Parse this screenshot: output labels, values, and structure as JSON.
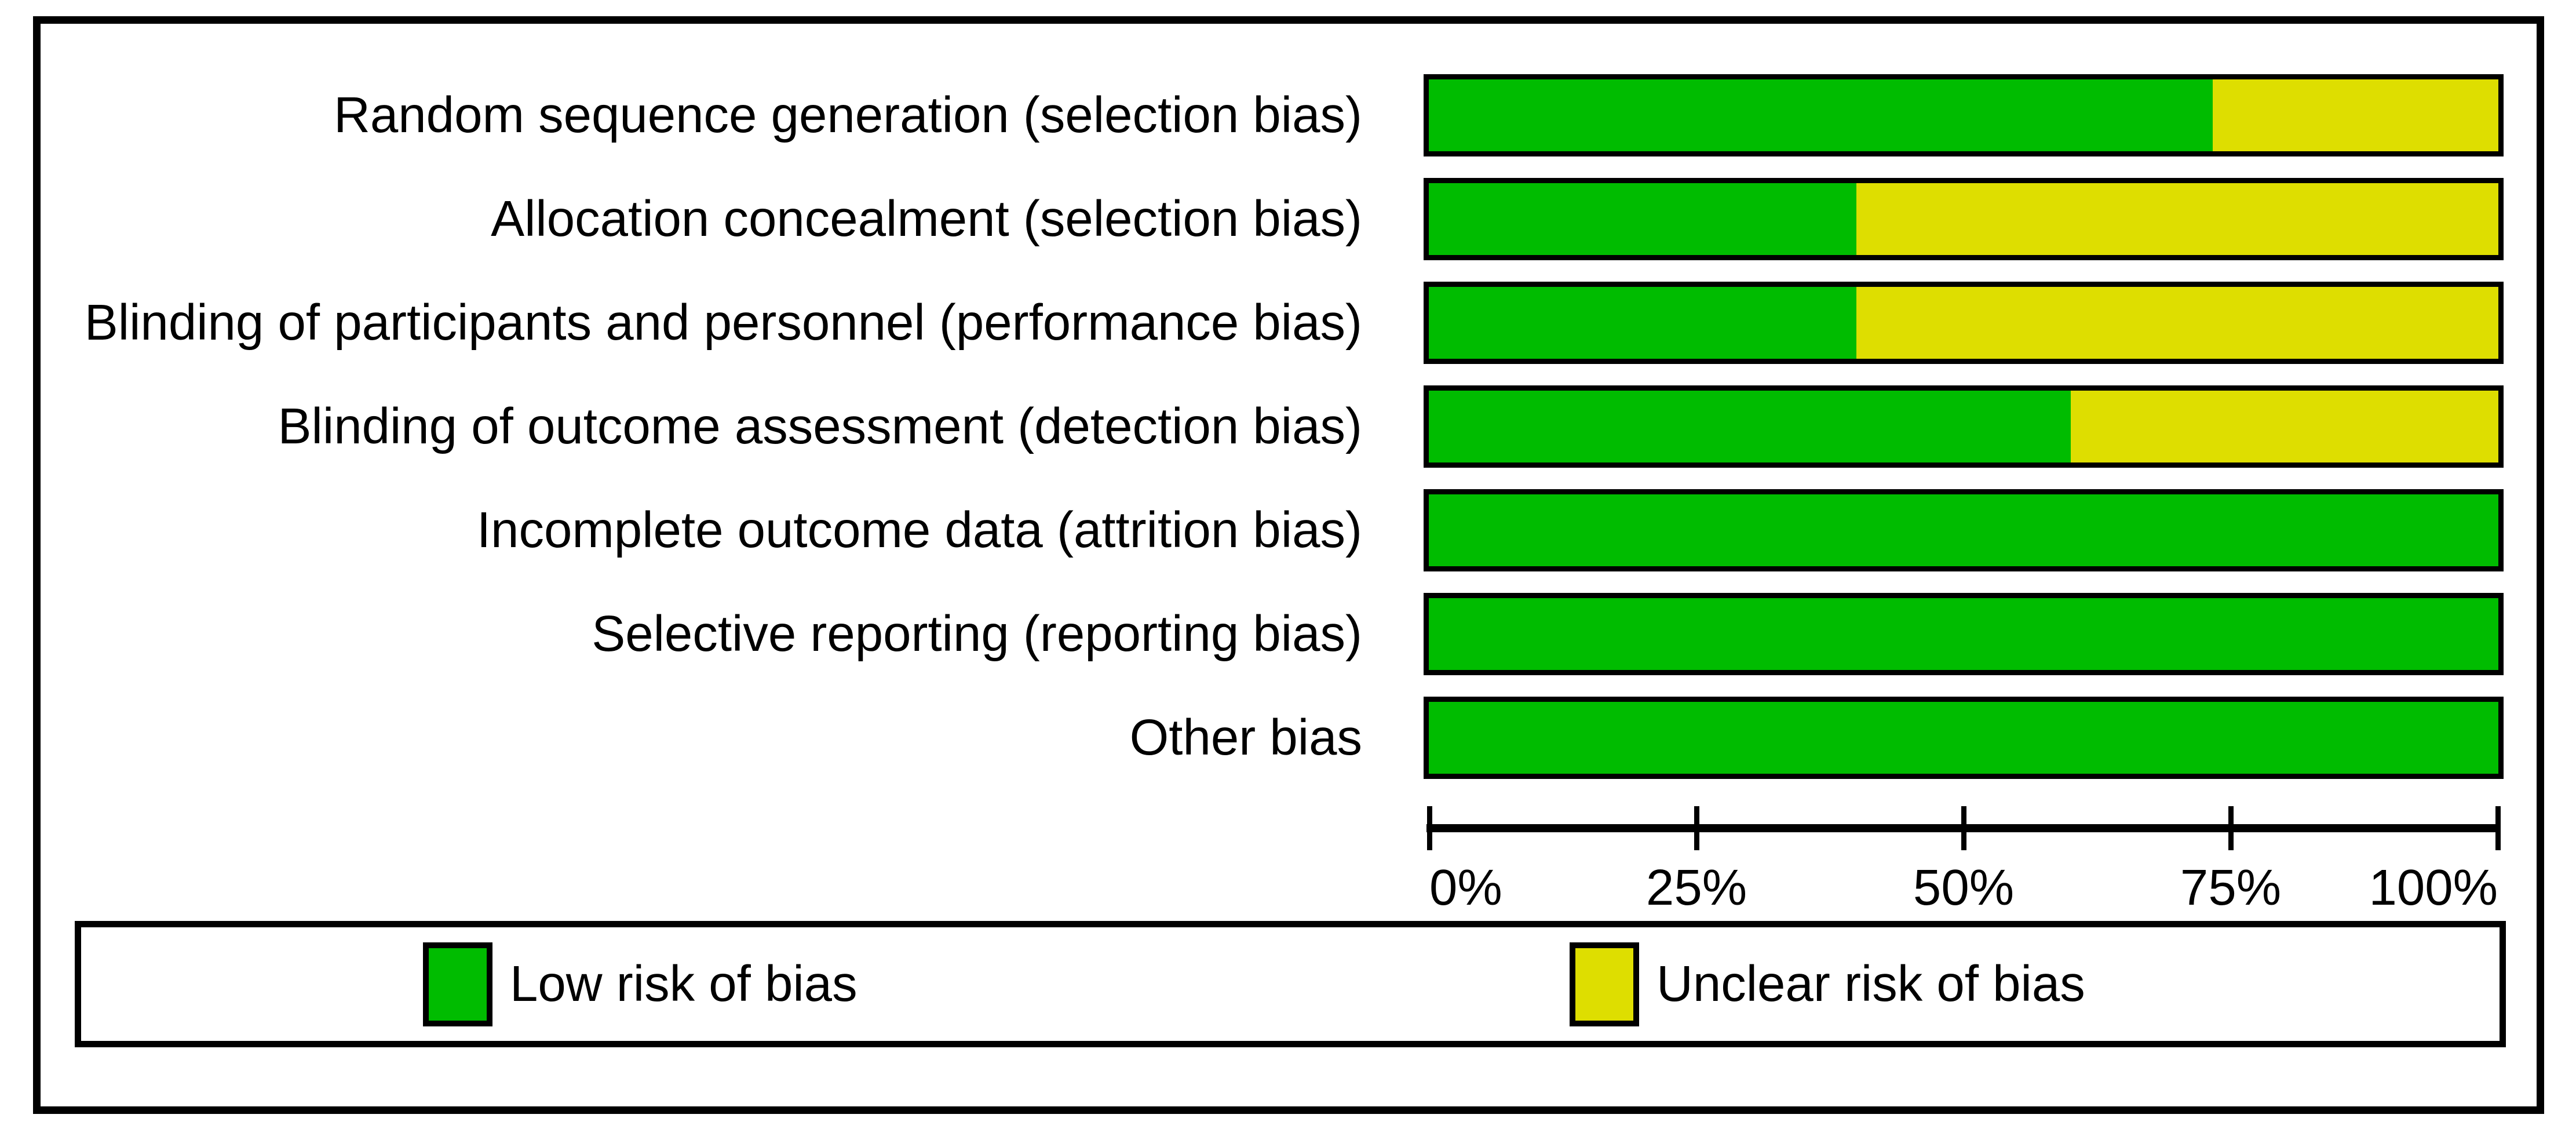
{
  "figure": {
    "rows": [
      {
        "label": "Random sequence generation (selection bias)",
        "low": 73.3,
        "unclear": 26.7
      },
      {
        "label": "Allocation concealment (selection bias)",
        "low": 40,
        "unclear": 60
      },
      {
        "label": "Blinding of participants and personnel (performance bias)",
        "low": 40,
        "unclear": 60
      },
      {
        "label": "Blinding of outcome assessment (detection bias)",
        "low": 60,
        "unclear": 40
      },
      {
        "label": "Incomplete outcome data (attrition bias)",
        "low": 100,
        "unclear": 0
      },
      {
        "label": "Selective reporting (reporting bias)",
        "low": 100,
        "unclear": 0
      },
      {
        "label": "Other bias",
        "low": 100,
        "unclear": 0
      }
    ],
    "axis_ticks": [
      "0%",
      "25%",
      "50%",
      "75%",
      "100%"
    ],
    "legend": [
      {
        "label": "Low risk of bias",
        "color": "#00BC00"
      },
      {
        "label": "Unclear risk of bias",
        "color": "#DEDE00"
      }
    ],
    "colors": {
      "low_risk": "#00BC00",
      "unclear_risk": "#DEDE00",
      "border": "#000000",
      "background": "#FFFFFF"
    }
  },
  "chart_data": {
    "type": "bar",
    "orientation": "horizontal",
    "stacked": true,
    "title": "",
    "xlabel": "",
    "ylabel": "",
    "xlim": [
      0,
      100
    ],
    "x_ticks": [
      "0%",
      "25%",
      "50%",
      "75%",
      "100%"
    ],
    "grid": false,
    "legend_position": "bottom",
    "categories": [
      "Random sequence generation (selection bias)",
      "Allocation concealment (selection bias)",
      "Blinding of participants and personnel (performance bias)",
      "Blinding of outcome assessment (detection bias)",
      "Incomplete outcome data (attrition bias)",
      "Selective reporting (reporting bias)",
      "Other bias"
    ],
    "series": [
      {
        "name": "Low risk of bias",
        "color": "#00BC00",
        "values": [
          73.3,
          40,
          40,
          60,
          100,
          100,
          100
        ]
      },
      {
        "name": "Unclear risk of bias",
        "color": "#DEDE00",
        "values": [
          26.7,
          60,
          60,
          40,
          0,
          0,
          0
        ]
      }
    ]
  }
}
